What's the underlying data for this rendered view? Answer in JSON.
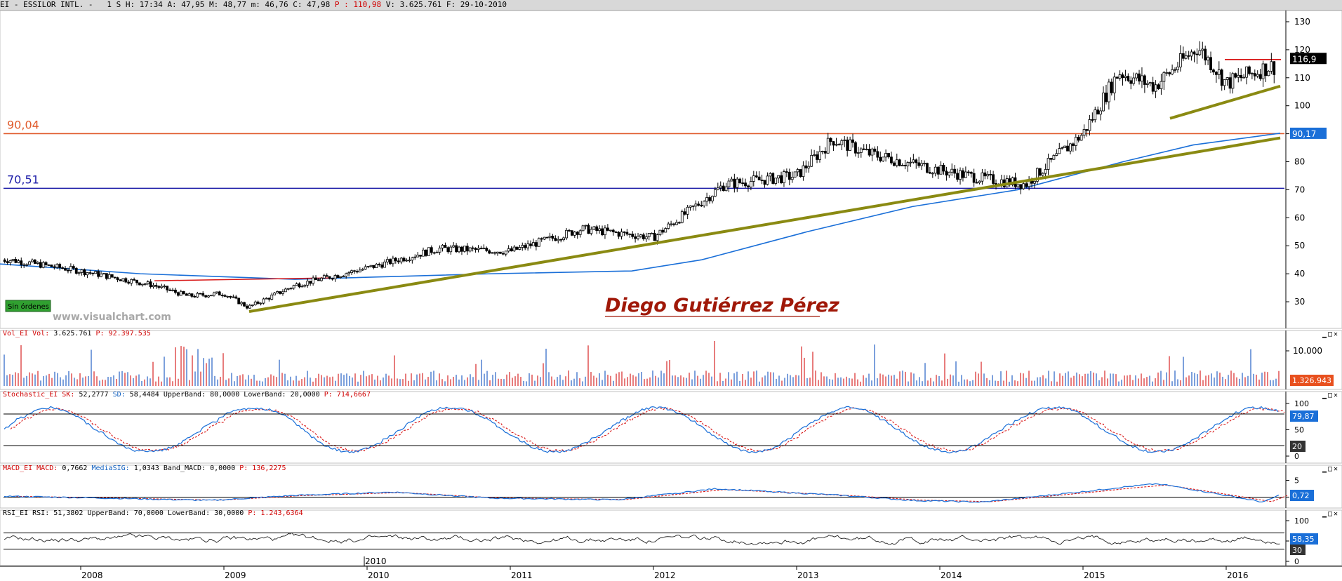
{
  "header": {
    "symbol": "EI - ESSILOR INTL. -",
    "timeframe": "1 S",
    "h": "H: 17:34",
    "a": "A: 47,95",
    "m": "M: 48,77",
    "mn": "m: 46,76",
    "c": "C: 47,98",
    "p": "P : 110,98",
    "v": "V: 3.625.761",
    "f": "F: 29-10-2010"
  },
  "panels": {
    "volume": {
      "name": "Vol_EI Vol:",
      "value": "3.625.761",
      "p": "P: 92.397.535"
    },
    "stochastic": {
      "name": "Stochastic_EI SK:",
      "sk": "52,2777",
      "sd_label": "SD:",
      "sd": "58,4484",
      "ub_label": "UpperBand:",
      "ub": "80,0000",
      "lb_label": "LowerBand:",
      "lb": "20,0000",
      "p": "P: 714,6667"
    },
    "macd": {
      "name": "MACD_EI MACD:",
      "macd": "0,7662",
      "sig_label": "MediaSIG:",
      "sig": "1,0343",
      "band_label": "Band_MACD:",
      "band": "0,0000",
      "p": "P: 136,2275"
    },
    "rsi": {
      "name": "RSI_EI RSI:",
      "rsi": "51,3802",
      "ub_label": "UpperBand:",
      "ub": "70,0000",
      "lb_label": "LowerBand:",
      "lb": "30,0000",
      "p": "P: 1.243,6364"
    }
  },
  "annotations": {
    "level_high": "90,04",
    "level_low": "70,51",
    "author": "Diego Gutiérrez Pérez",
    "watermark": "www.visualchart.com",
    "orders_badge": "Sin órdenes",
    "price_tag": "116,9",
    "ma_tag": "90,17",
    "vol_tag": "1.326.943",
    "vol_axis_label": "10.000",
    "stoch_tag1": "79,87",
    "stoch_tag2": "20",
    "macd_tag": "0,72",
    "rsi_tag1": "58,35",
    "rsi_tag2": "30",
    "cursor_date": "2010"
  },
  "colors": {
    "support_high": "#e05a2b",
    "support_low": "#1c1ca8",
    "trendline": "#8a8a12",
    "moving_average": "#1a6fd8",
    "resistance": "#d81818",
    "volume_up": "#4477cc",
    "volume_down": "#dd4444",
    "author": "#a01808"
  },
  "chart_data": [
    {
      "type": "candlestick",
      "panel": "price",
      "x": [
        2007.5,
        2008.0,
        2008.5,
        2008.75,
        2009.0,
        2009.17,
        2009.5,
        2010.0,
        2010.5,
        2011.0,
        2011.5,
        2012.0,
        2012.5,
        2013.0,
        2013.25,
        2013.5,
        2014.0,
        2014.3,
        2014.6,
        2015.0,
        2015.25,
        2015.5,
        2015.8,
        2015.9,
        2016.0,
        2016.3
      ],
      "close": [
        45,
        41,
        36,
        32,
        33,
        28,
        36,
        42,
        49,
        48,
        56,
        53,
        72,
        75,
        88,
        83,
        77,
        74,
        72,
        90,
        112,
        107,
        121,
        115,
        108,
        114
      ],
      "yticks": [
        30,
        40,
        50,
        60,
        70,
        80,
        90,
        100,
        110,
        120,
        130
      ],
      "xticks": [
        "2008",
        "2009",
        "2010",
        "2011",
        "2012",
        "2013",
        "2014",
        "2015",
        "2016"
      ],
      "levels": [
        90.04,
        70.51
      ],
      "ylim": [
        25,
        134
      ]
    },
    {
      "type": "bar",
      "panel": "volume",
      "ytick": "10.000"
    },
    {
      "type": "line",
      "panel": "stochastic",
      "yticks": [
        0,
        50,
        100
      ],
      "bands": [
        20,
        80
      ]
    },
    {
      "type": "line",
      "panel": "macd",
      "yticks": [
        0,
        5
      ]
    },
    {
      "type": "line",
      "panel": "rsi",
      "yticks": [
        0,
        50,
        100
      ],
      "bands": [
        30,
        70
      ]
    }
  ]
}
